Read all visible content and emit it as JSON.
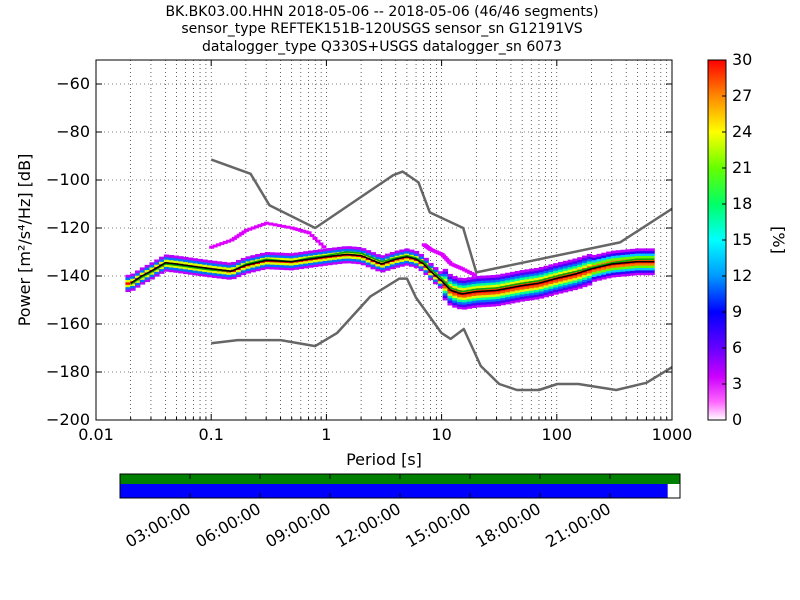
{
  "chart_data": {
    "type": "heatmap",
    "title_lines": [
      "BK.BK03.00.HHN   2018-05-06 -- 2018-05-06  (46/46 segments)",
      "sensor_type REFTEK151B-120USGS sensor_sn G12191VS",
      "datalogger_type Q330S+USGS datalogger_sn 6073"
    ],
    "xlabel": "Period [s]",
    "ylabel": "Power [m²/s⁴/Hz] [dB]",
    "xscale": "log",
    "xlim": [
      0.01,
      1000
    ],
    "ylim": [
      -200,
      -50
    ],
    "xticks": [
      0.01,
      0.1,
      1,
      10,
      100,
      1000
    ],
    "xtick_labels": [
      "0.01",
      "0.1",
      "1",
      "10",
      "100",
      "1000"
    ],
    "yticks": [
      -60,
      -80,
      -100,
      -120,
      -140,
      -160,
      -180,
      -200
    ],
    "ytick_labels": [
      "−60",
      "−80",
      "−100",
      "−120",
      "−140",
      "−160",
      "−180",
      "−200"
    ],
    "grid": true,
    "colorbar": {
      "label": "[%]",
      "min": 0,
      "max": 30,
      "ticks": [
        0,
        3,
        6,
        9,
        12,
        15,
        18,
        21,
        24,
        27,
        30
      ]
    },
    "nhnm": {
      "name": "New High Noise Model",
      "period": [
        0.1,
        0.22,
        0.32,
        0.8,
        3.8,
        4.6,
        6.3,
        7.9,
        15.4,
        20,
        354,
        1000
      ],
      "db": [
        -91.5,
        -97.4,
        -110.5,
        -120,
        -98,
        -96.5,
        -101,
        -113.5,
        -120,
        -138.5,
        -126,
        -112
      ]
    },
    "nlnm": {
      "name": "New Low Noise Model",
      "period": [
        0.1,
        0.17,
        0.4,
        0.8,
        1.24,
        2.4,
        4.3,
        5,
        6,
        10,
        12,
        15.6,
        21.9,
        31.6,
        45,
        70,
        101,
        154,
        328,
        600,
        1000
      ],
      "db": [
        -168,
        -166.7,
        -166.7,
        -169.2,
        -163.7,
        -148.6,
        -141.1,
        -141.1,
        -149,
        -163.8,
        -166.2,
        -162.1,
        -177.5,
        -185,
        -187.5,
        -187.5,
        -185,
        -185,
        -187.5,
        -184.5,
        -178
      ]
    },
    "mode_curve": {
      "period": [
        0.02,
        0.025,
        0.03,
        0.04,
        0.05,
        0.07,
        0.1,
        0.15,
        0.2,
        0.3,
        0.5,
        0.7,
        1,
        1.5,
        2,
        3,
        4,
        5,
        6,
        7,
        8,
        10,
        12,
        15,
        20,
        30,
        50,
        70,
        100,
        150,
        200,
        300,
        500,
        700
      ],
      "db": [
        -143,
        -140,
        -138,
        -134.5,
        -135,
        -136,
        -137,
        -138,
        -135.5,
        -133.5,
        -134,
        -133,
        -132,
        -131,
        -131.5,
        -135,
        -133,
        -132,
        -133,
        -135,
        -138,
        -142,
        -146,
        -147.5,
        -146.5,
        -146,
        -144,
        -143,
        -141,
        -139,
        -137,
        -135,
        -134,
        -134
      ]
    },
    "mean_curve": {
      "period": [
        0.02,
        0.025,
        0.03,
        0.04,
        0.05,
        0.07,
        0.1,
        0.15,
        0.2,
        0.3,
        0.5,
        0.7,
        1,
        1.5,
        2,
        3,
        4,
        5,
        6,
        7,
        8,
        10,
        12,
        15,
        20,
        30,
        50,
        70,
        100,
        150,
        200,
        300,
        500,
        700
      ],
      "db": [
        -143.5,
        -140.5,
        -138.5,
        -135,
        -135.5,
        -136.5,
        -137.5,
        -138,
        -135,
        -133,
        -134,
        -132.5,
        -131.5,
        -130,
        -130.5,
        -134,
        -132.5,
        -131.5,
        -132.5,
        -134,
        -137,
        -141,
        -145,
        -146.5,
        -145.5,
        -145,
        -143,
        -142,
        -140,
        -138,
        -136.5,
        -134.5,
        -133,
        -133
      ]
    },
    "spread_curves": [
      {
        "name": "upper-outliers",
        "period": [
          0.1,
          0.15,
          0.2,
          0.3,
          0.5,
          0.7,
          1
        ],
        "db": [
          -128,
          -125,
          -121,
          -118,
          -120,
          -122,
          -129
        ]
      },
      {
        "name": "upper-outliers-2",
        "period": [
          7,
          8,
          10,
          12,
          15,
          20
        ],
        "db": [
          -127,
          -129,
          -131,
          -135,
          -137,
          -140
        ]
      }
    ],
    "availability": {
      "time_ticks": [
        "03:00:00",
        "06:00:00",
        "09:00:00",
        "12:00:00",
        "15:00:00",
        "18:00:00",
        "21:00:00"
      ],
      "coverage_fraction": 0.978,
      "segments_count": 46,
      "segments_total": 46,
      "colors": {
        "top": "#008000",
        "bottom": "#0000ff"
      }
    }
  }
}
